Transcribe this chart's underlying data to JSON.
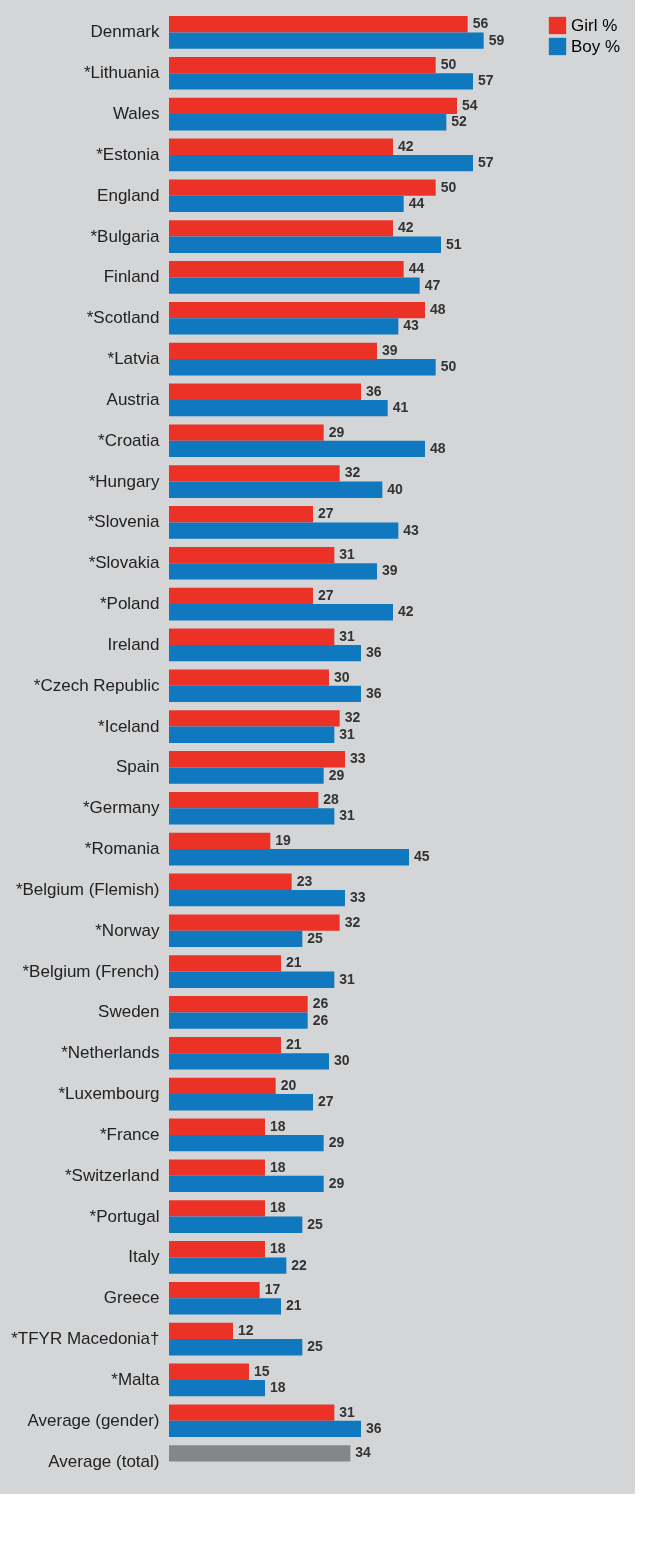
{
  "chart_data": {
    "type": "bar",
    "orientation": "horizontal",
    "categories": [
      "Denmark",
      "*Lithuania",
      "Wales",
      "*Estonia",
      "England",
      "*Bulgaria",
      "Finland",
      "*Scotland",
      "*Latvia",
      "Austria",
      "*Croatia",
      "*Hungary",
      "*Slovenia",
      "*Slovakia",
      "*Poland",
      "Ireland",
      "*Czech Republic",
      "*Iceland",
      "Spain",
      "*Germany",
      "*Romania",
      "*Belgium (Flemish)",
      "*Norway",
      "*Belgium (French)",
      "Sweden",
      "*Netherlands",
      "*Luxembourg",
      "*France",
      "*Switzerland",
      "*Portugal",
      "Italy",
      "Greece",
      "*TFYR Macedonia†",
      "*Malta",
      "Average (gender)",
      "Average (total)"
    ],
    "series": [
      {
        "name": "Girl %",
        "color": "#ec3127",
        "values": [
          56,
          50,
          54,
          42,
          50,
          42,
          44,
          48,
          39,
          36,
          29,
          32,
          27,
          31,
          27,
          31,
          30,
          32,
          33,
          28,
          19,
          23,
          32,
          21,
          26,
          21,
          20,
          18,
          18,
          18,
          18,
          17,
          12,
          15,
          31,
          null
        ]
      },
      {
        "name": "Boy %",
        "color": "#0f78bf",
        "values": [
          59,
          57,
          52,
          57,
          44,
          51,
          47,
          43,
          50,
          41,
          48,
          40,
          43,
          39,
          42,
          36,
          36,
          31,
          29,
          31,
          45,
          33,
          25,
          31,
          26,
          30,
          27,
          29,
          29,
          25,
          22,
          21,
          25,
          18,
          36,
          null
        ]
      },
      {
        "color": "#848688",
        "values": [
          null,
          null,
          null,
          null,
          null,
          null,
          null,
          null,
          null,
          null,
          null,
          null,
          null,
          null,
          null,
          null,
          null,
          null,
          null,
          null,
          null,
          null,
          null,
          null,
          null,
          null,
          null,
          null,
          null,
          null,
          null,
          null,
          null,
          null,
          null,
          34
        ]
      }
    ],
    "data_labels": true,
    "grid": false,
    "legend": "top right"
  }
}
